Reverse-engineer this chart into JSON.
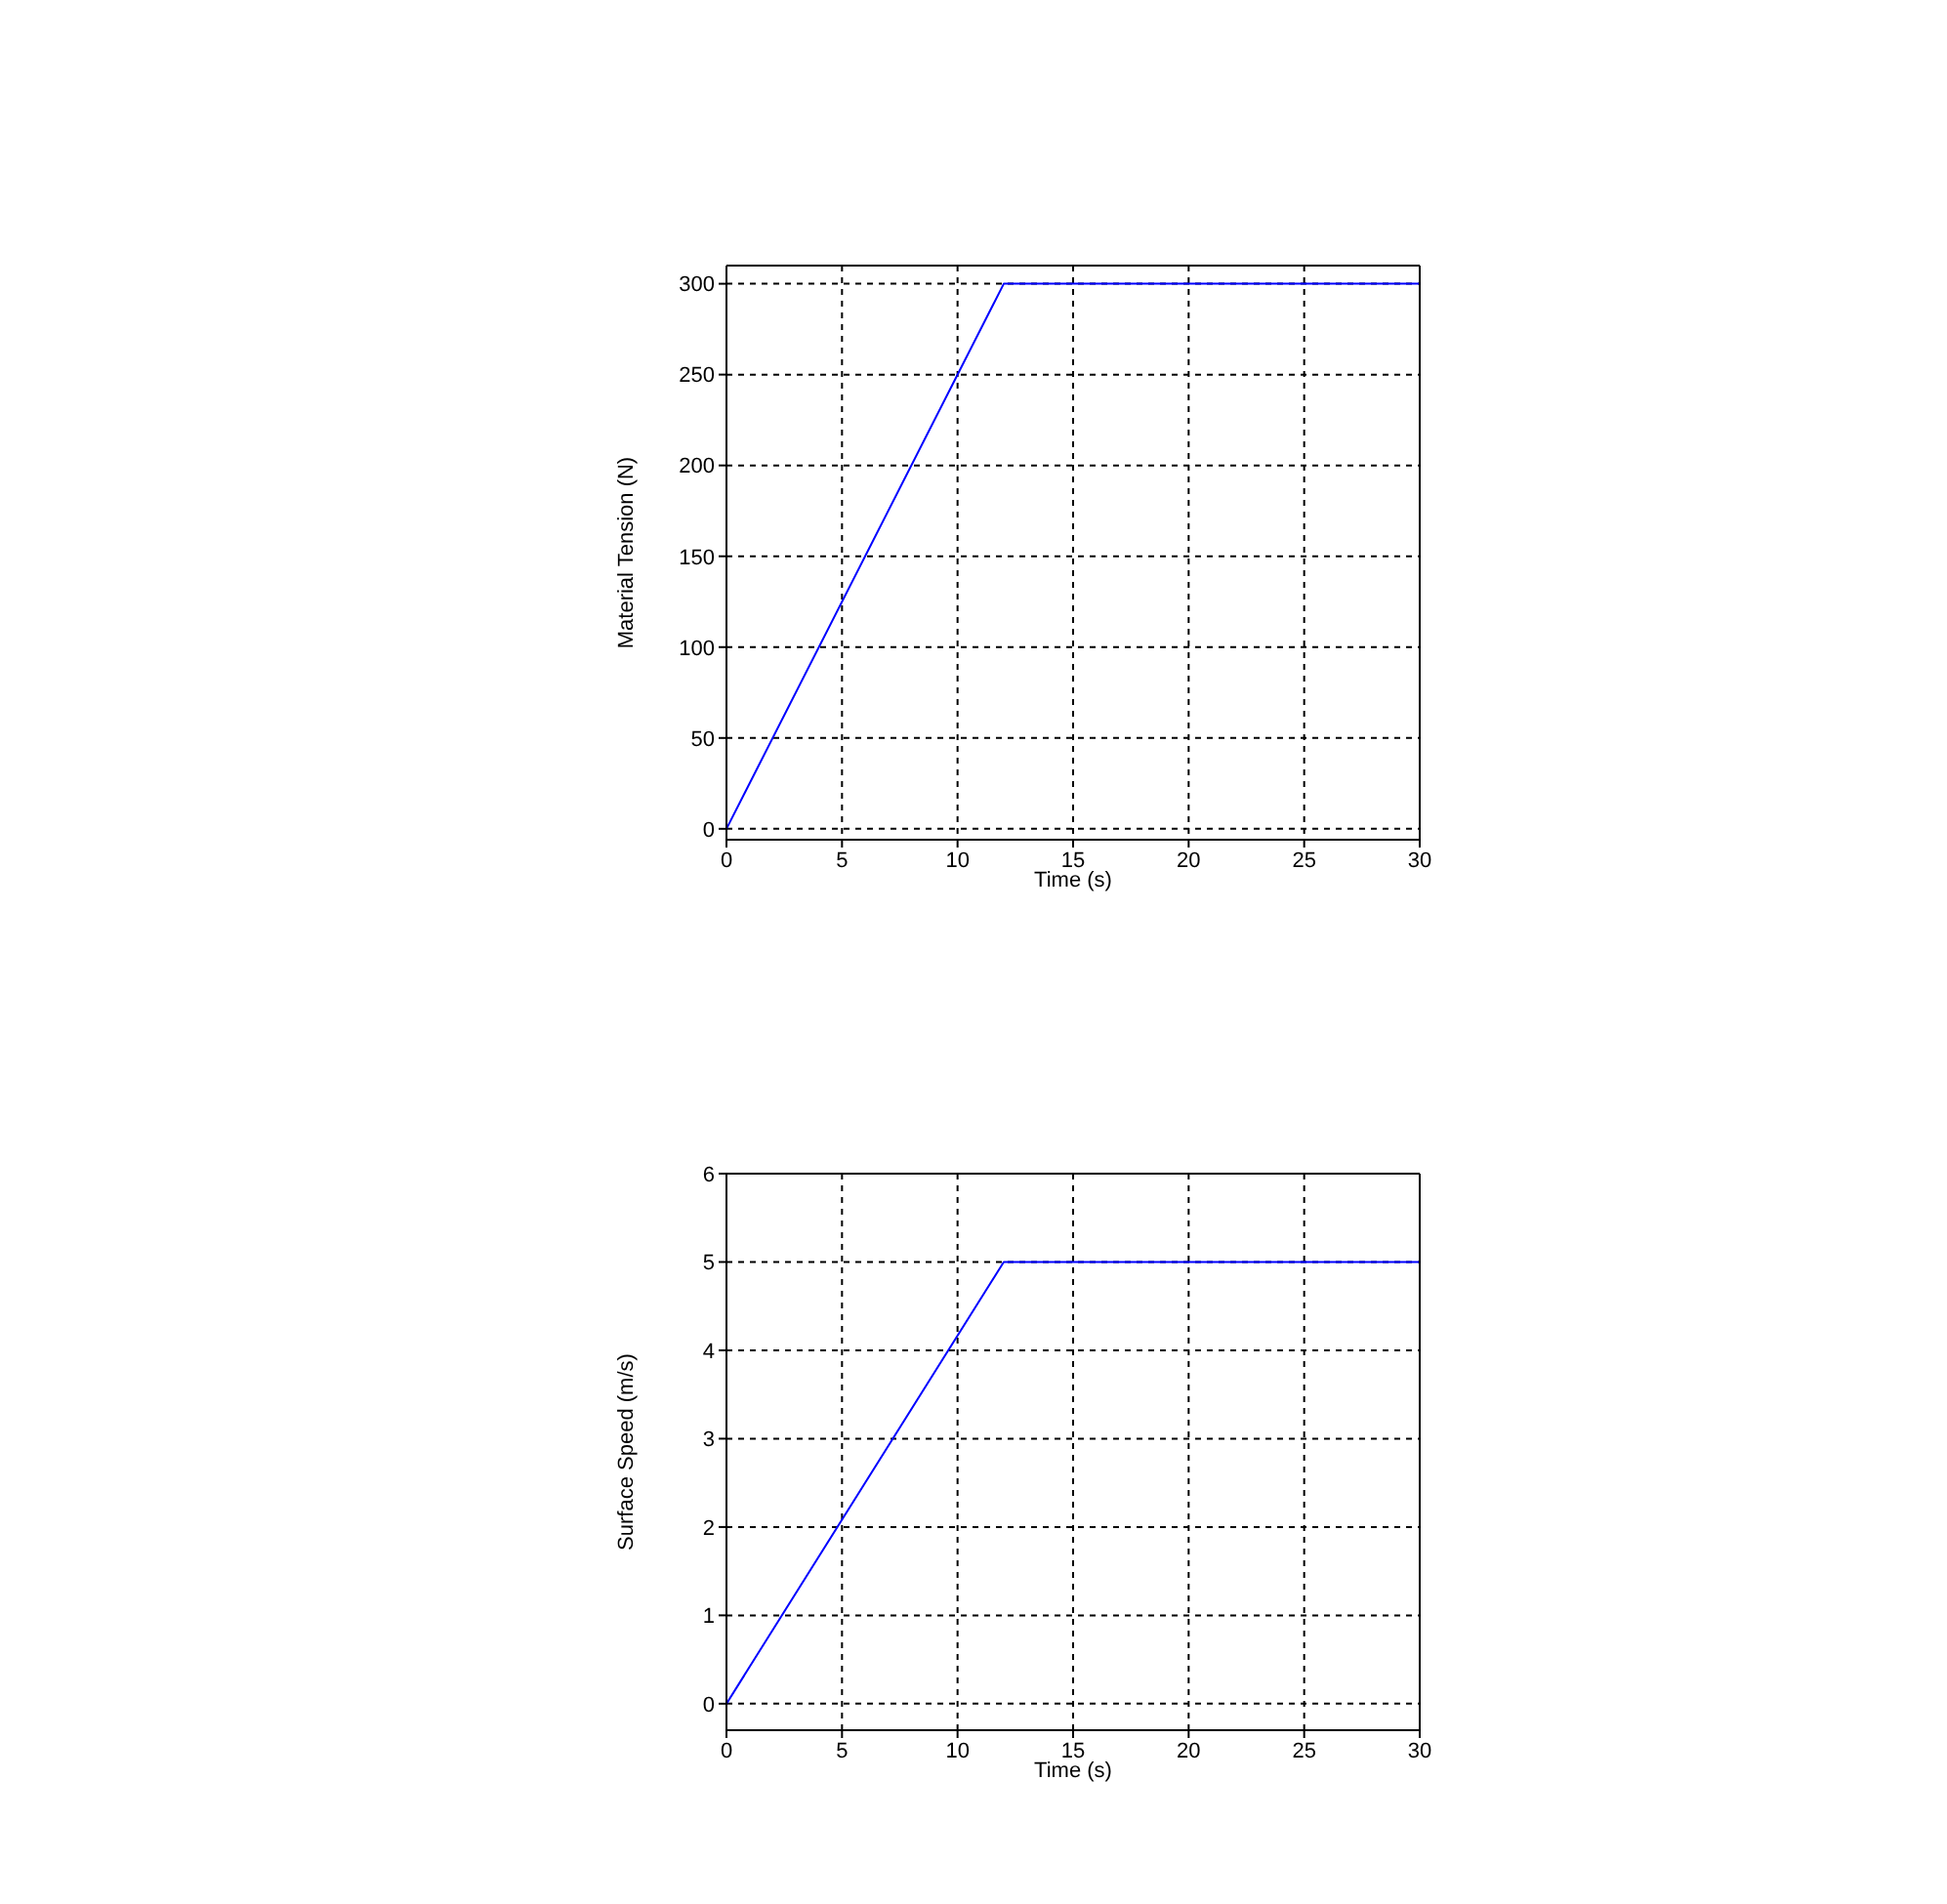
{
  "chart_data": [
    {
      "type": "line",
      "x": [
        0,
        12,
        30
      ],
      "xlabel": "Time (s)",
      "ylabel": "Material Tension (N)",
      "series": [
        {
          "color": "#0000ff",
          "values": [
            0,
            300,
            300
          ]
        }
      ],
      "xlim": [
        0,
        30
      ],
      "xticks": [
        0,
        5,
        10,
        15,
        20,
        25,
        30
      ],
      "ylim": [
        -6,
        310
      ],
      "yticks": [
        0,
        50,
        100,
        150,
        200,
        250,
        300
      ],
      "grid": true
    },
    {
      "type": "line",
      "x": [
        0,
        12,
        30
      ],
      "xlabel": "Time (s)",
      "ylabel": "Surface Speed (m/s)",
      "series": [
        {
          "color": "#0000ff",
          "values": [
            0,
            5,
            5
          ]
        }
      ],
      "xlim": [
        0,
        30
      ],
      "xticks": [
        0,
        5,
        10,
        15,
        20,
        25,
        30
      ],
      "ylim": [
        -0.3,
        6
      ],
      "yticks": [
        0,
        1,
        2,
        3,
        4,
        5,
        6
      ],
      "grid": true
    }
  ]
}
